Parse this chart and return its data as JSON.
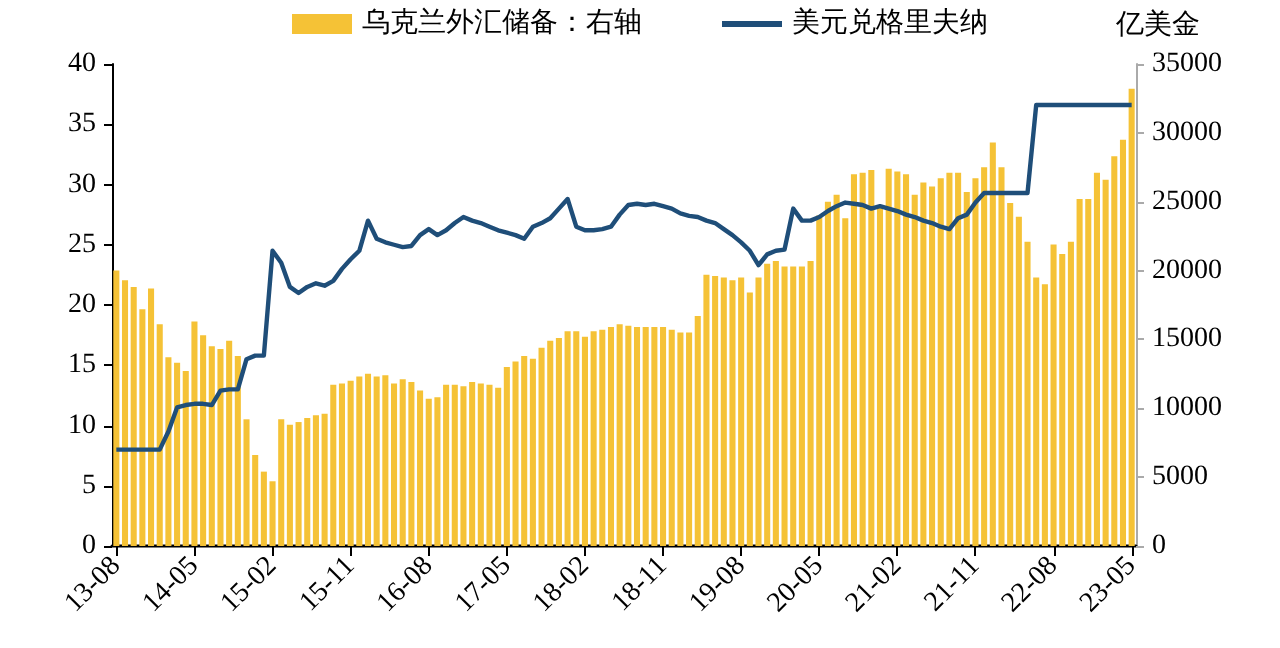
{
  "chart_data": {
    "type": "bar",
    "y2label": "亿美金",
    "legend": "top",
    "grid": false,
    "categories": [
      "13-08",
      null,
      null,
      null,
      null,
      null,
      null,
      null,
      null,
      "14-05",
      null,
      null,
      null,
      null,
      null,
      null,
      null,
      null,
      "15-02",
      null,
      null,
      null,
      null,
      null,
      null,
      null,
      null,
      "15-11",
      null,
      null,
      null,
      null,
      null,
      null,
      null,
      null,
      "16-08",
      null,
      null,
      null,
      null,
      null,
      null,
      null,
      null,
      "17-05",
      null,
      null,
      null,
      null,
      null,
      null,
      null,
      null,
      "18-02",
      null,
      null,
      null,
      null,
      null,
      null,
      null,
      null,
      "18-11",
      null,
      null,
      null,
      null,
      null,
      null,
      null,
      null,
      "19-08",
      null,
      null,
      null,
      null,
      null,
      null,
      null,
      null,
      "20-05",
      null,
      null,
      null,
      null,
      null,
      null,
      null,
      null,
      "21-02",
      null,
      null,
      null,
      null,
      null,
      null,
      null,
      null,
      "21-11",
      null,
      null,
      null,
      null,
      null,
      null,
      null,
      null,
      "22-08",
      null,
      null,
      null,
      null,
      null,
      null,
      null,
      null,
      "23-05"
    ],
    "ylim": [
      0,
      40
    ],
    "yticks": [
      0,
      5,
      10,
      15,
      20,
      25,
      30,
      35,
      40
    ],
    "y2lim": [
      0,
      35000
    ],
    "y2ticks": [
      0,
      5000,
      10000,
      15000,
      20000,
      25000,
      30000,
      35000
    ],
    "series": [
      {
        "name": "乌克兰外汇储备：右轴",
        "axis": "y2",
        "color": "#f5c236",
        "values": [
          20000,
          19300,
          18800,
          17200,
          18700,
          16100,
          13700,
          13300,
          12700,
          16300,
          15300,
          14500,
          14300,
          14900,
          13800,
          9200,
          6600,
          5400,
          4700,
          9200,
          8800,
          9000,
          9300,
          9500,
          9600,
          11700,
          11800,
          12000,
          12300,
          12500,
          12300,
          12400,
          11800,
          12100,
          11900,
          11300,
          10700,
          10800,
          11700,
          11700,
          11600,
          11900,
          11800,
          11700,
          11500,
          13000,
          13400,
          13800,
          13600,
          14400,
          14900,
          15100,
          15600,
          15600,
          15200,
          15600,
          15700,
          15900,
          16100,
          16000,
          15900,
          15900,
          15900,
          15900,
          15700,
          15500,
          15500,
          16700,
          19700,
          19600,
          19500,
          19300,
          19500,
          18400,
          19500,
          20500,
          20700,
          20300,
          20300,
          20300,
          20700,
          24000,
          25000,
          25500,
          23800,
          27000,
          27100,
          27300,
          24700,
          27400,
          27200,
          27000,
          25500,
          26400,
          26100,
          26700,
          27100,
          27100,
          25700,
          26700,
          27500,
          29300,
          27500,
          24900,
          23900,
          22100,
          19500,
          19000,
          21900,
          21200,
          22100,
          25200,
          25200,
          27100,
          26600,
          28300,
          29500,
          33200
        ]
      },
      {
        "name": "美元兑格里夫纳",
        "type": "line",
        "color": "#1f4e79",
        "values": [
          8.0,
          8.0,
          8.0,
          8.0,
          8.0,
          8.0,
          9.5,
          11.5,
          11.7,
          11.8,
          11.8,
          11.7,
          12.9,
          13.0,
          13.0,
          15.5,
          15.8,
          15.8,
          24.5,
          23.5,
          21.5,
          21.0,
          21.5,
          21.8,
          21.6,
          22.0,
          23.0,
          23.8,
          24.5,
          27.0,
          25.5,
          25.2,
          25.0,
          24.8,
          24.9,
          25.8,
          26.3,
          25.8,
          26.2,
          26.8,
          27.3,
          27.0,
          26.8,
          26.5,
          26.2,
          26.0,
          25.8,
          25.5,
          26.5,
          26.8,
          27.2,
          28.0,
          28.8,
          26.5,
          26.2,
          26.2,
          26.3,
          26.5,
          27.5,
          28.3,
          28.4,
          28.3,
          28.4,
          28.2,
          28.0,
          27.6,
          27.4,
          27.3,
          27.0,
          26.8,
          26.3,
          25.8,
          25.2,
          24.5,
          23.3,
          24.2,
          24.5,
          24.6,
          28.0,
          27.0,
          27.0,
          27.3,
          27.8,
          28.2,
          28.5,
          28.4,
          28.3,
          28.0,
          28.2,
          28.0,
          27.8,
          27.5,
          27.3,
          27.0,
          26.8,
          26.5,
          26.3,
          27.2,
          27.5,
          28.5,
          29.3,
          29.3,
          29.3,
          29.3,
          29.3,
          29.3,
          36.6,
          36.6,
          36.6,
          36.6,
          36.6,
          36.6,
          36.6,
          36.6,
          36.6,
          36.6,
          36.6,
          36.6
        ]
      }
    ]
  }
}
